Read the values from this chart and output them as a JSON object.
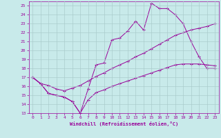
{
  "background_color": "#c8eaea",
  "line_color": "#990099",
  "grid_color": "#aacccc",
  "xlabel": "Windchill (Refroidissement éolien,°C)",
  "xlim_min": -0.5,
  "xlim_max": 23.5,
  "ylim_min": 13,
  "ylim_max": 25.5,
  "xticks": [
    0,
    1,
    2,
    3,
    4,
    5,
    6,
    7,
    8,
    9,
    10,
    11,
    12,
    13,
    14,
    15,
    16,
    17,
    18,
    19,
    20,
    21,
    22,
    23
  ],
  "yticks": [
    13,
    14,
    15,
    16,
    17,
    18,
    19,
    20,
    21,
    22,
    23,
    24,
    25
  ],
  "line1_x": [
    0,
    1,
    2,
    3,
    4,
    5,
    6,
    7,
    8,
    9,
    10,
    11,
    12,
    13,
    14,
    15,
    16,
    17,
    18,
    19,
    20,
    21,
    22,
    23
  ],
  "line1_y": [
    17.0,
    16.3,
    15.2,
    15.0,
    14.8,
    14.3,
    13.0,
    15.7,
    18.4,
    18.6,
    21.2,
    21.4,
    22.2,
    23.3,
    22.3,
    25.3,
    24.7,
    24.7,
    24.0,
    23.0,
    21.0,
    19.3,
    18.0,
    18.0
  ],
  "line2_x": [
    0,
    1,
    2,
    3,
    4,
    5,
    6,
    7,
    8,
    9,
    10,
    11,
    12,
    13,
    14,
    15,
    16,
    17,
    18,
    19,
    20,
    21,
    22,
    23
  ],
  "line2_y": [
    17.0,
    16.3,
    16.1,
    15.7,
    15.5,
    15.8,
    16.1,
    16.6,
    17.1,
    17.5,
    18.0,
    18.4,
    18.8,
    19.3,
    19.7,
    20.2,
    20.7,
    21.2,
    21.7,
    22.0,
    22.3,
    22.5,
    22.7,
    23.0
  ],
  "line3_x": [
    0,
    1,
    2,
    3,
    4,
    5,
    6,
    7,
    8,
    9,
    10,
    11,
    12,
    13,
    14,
    15,
    16,
    17,
    18,
    19,
    20,
    21,
    22,
    23
  ],
  "line3_y": [
    17.0,
    16.3,
    15.2,
    15.0,
    14.8,
    14.3,
    13.0,
    14.5,
    15.3,
    15.6,
    16.0,
    16.3,
    16.6,
    16.9,
    17.2,
    17.5,
    17.8,
    18.1,
    18.4,
    18.5,
    18.5,
    18.5,
    18.4,
    18.3
  ]
}
